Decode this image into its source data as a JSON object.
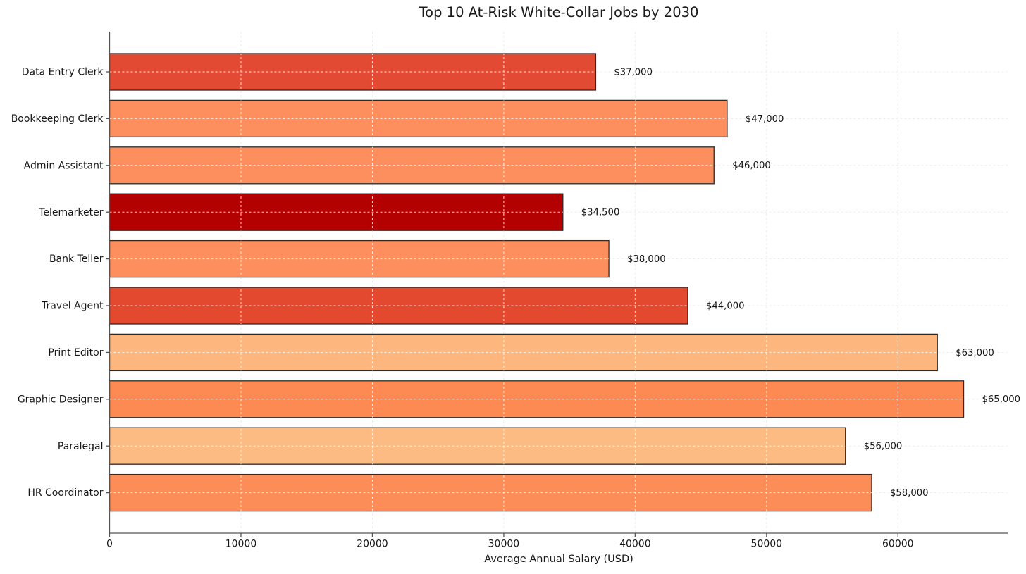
{
  "chart_data": {
    "type": "bar",
    "orientation": "horizontal",
    "title": "Top 10 At-Risk White-Collar Jobs by 2030",
    "xlabel": "Average Annual Salary (USD)",
    "ylabel": "",
    "categories": [
      "Data Entry Clerk",
      "Bookkeeping Clerk",
      "Admin Assistant",
      "Telemarketer",
      "Bank Teller",
      "Travel Agent",
      "Print Editor",
      "Graphic Designer",
      "Paralegal",
      "HR Coordinator"
    ],
    "values": [
      37000,
      47000,
      46000,
      34500,
      38000,
      44000,
      63000,
      65000,
      56000,
      58000
    ],
    "value_labels": [
      "$37,000",
      "$47,000",
      "$46,000",
      "$34,500",
      "$38,000",
      "$44,000",
      "$63,000",
      "$65,000",
      "$56,000",
      "$58,000"
    ],
    "bar_colors": [
      "#e34a33",
      "#fc8f5d",
      "#fc8f5d",
      "#b30000",
      "#fc8f5d",
      "#e3492f",
      "#fdb77e",
      "#fc8a52",
      "#fdbb84",
      "#fc8d59"
    ],
    "bar_edge_color": "#2b2b2b",
    "x_ticks": [
      0,
      10000,
      20000,
      30000,
      40000,
      50000,
      60000
    ],
    "x_tick_labels": [
      "0",
      "10000",
      "20000",
      "30000",
      "40000",
      "50000",
      "60000"
    ],
    "xlim": [
      0,
      68350
    ],
    "grid": {
      "style": "dashed",
      "color_over_bars": "#ffffff",
      "color_on_background": "#ececec"
    },
    "axis_color": "#545454",
    "background": "#ffffff",
    "legend": "none"
  }
}
